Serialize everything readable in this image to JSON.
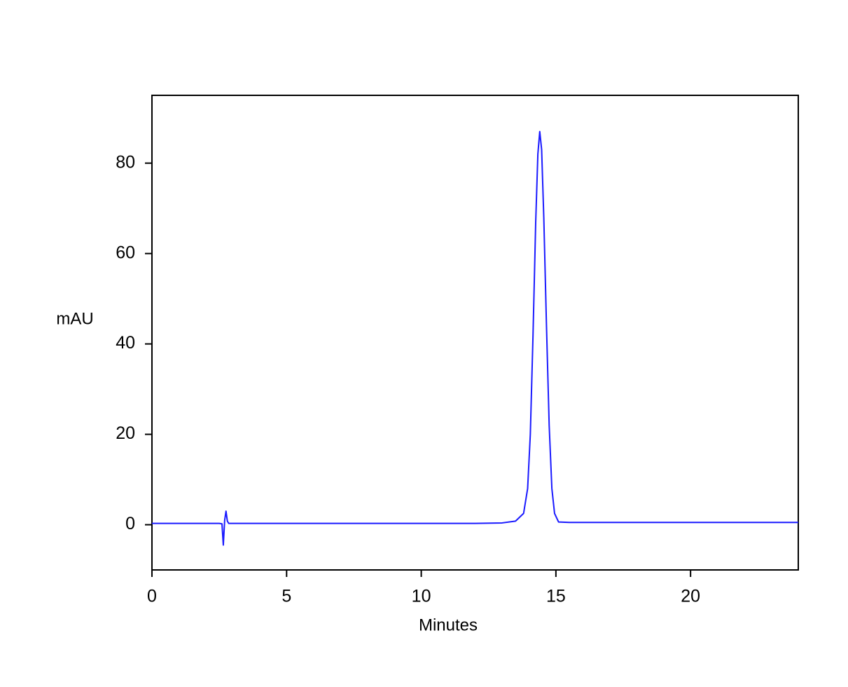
{
  "chart_data": {
    "type": "line",
    "xlabel": "Minutes",
    "ylabel": "mAU",
    "x": [
      0,
      2.5,
      2.6,
      2.65,
      2.7,
      2.75,
      2.8,
      2.85,
      3.0,
      5,
      7,
      10,
      12,
      13,
      13.5,
      13.8,
      13.95,
      14.05,
      14.15,
      14.25,
      14.33,
      14.4,
      14.47,
      14.55,
      14.65,
      14.75,
      14.85,
      14.95,
      15.1,
      15.5,
      20,
      24
    ],
    "series": [
      {
        "color": "#1a1aff",
        "values": [
          0.3,
          0.3,
          0.2,
          -4.5,
          1.0,
          3.0,
          0.8,
          0.3,
          0.3,
          0.3,
          0.3,
          0.3,
          0.3,
          0.4,
          0.8,
          2.5,
          8,
          20,
          42,
          67,
          82,
          87,
          83,
          68,
          44,
          22,
          8,
          2.5,
          0.6,
          0.5,
          0.5,
          0.5
        ]
      }
    ],
    "xlim": [
      0,
      24
    ],
    "xticks": [
      0,
      5,
      10,
      15,
      20
    ],
    "ylim": [
      -10,
      95
    ],
    "yticks": [
      0,
      20,
      40,
      60,
      80
    ],
    "grid": false
  }
}
